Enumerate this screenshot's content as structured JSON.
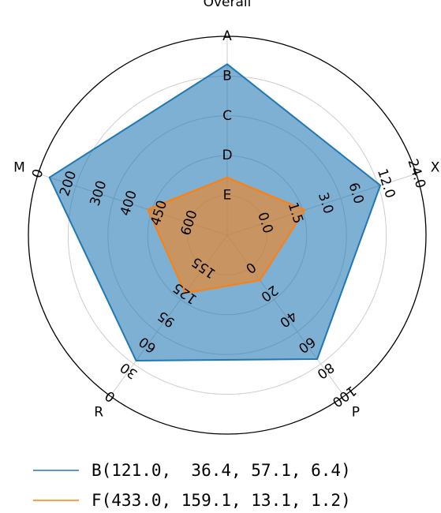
{
  "chart_data": {
    "type": "radar",
    "axes": [
      {
        "name": "Overall",
        "ticks": [
          "A",
          "B",
          "C",
          "D",
          "E"
        ]
      },
      {
        "name": "X",
        "ticks": [
          "24.0",
          "12.0",
          "6.0",
          "3.0",
          "1.5",
          "0.0"
        ]
      },
      {
        "name": "P",
        "ticks": [
          "100",
          "80",
          "60",
          "40",
          "20",
          "0"
        ]
      },
      {
        "name": "R",
        "ticks": [
          "0",
          "30",
          "60",
          "95",
          "125",
          "155"
        ]
      },
      {
        "name": "M",
        "ticks": [
          "0",
          "200",
          "300",
          "400",
          "450",
          "600"
        ]
      }
    ],
    "series": [
      {
        "label": "B(121.0,  36.4, 57.1, 6.4)",
        "color": "#1f77b4",
        "radial": [
          0.86,
          0.81,
          0.77,
          0.78,
          0.94
        ]
      },
      {
        "label": "F(433.0, 159.1, 13.1, 1.2)",
        "color": "#ff7f0e",
        "radial": [
          0.29,
          0.41,
          0.28,
          0.36,
          0.42
        ]
      }
    ],
    "grid": true,
    "legend_position": "bottom"
  }
}
